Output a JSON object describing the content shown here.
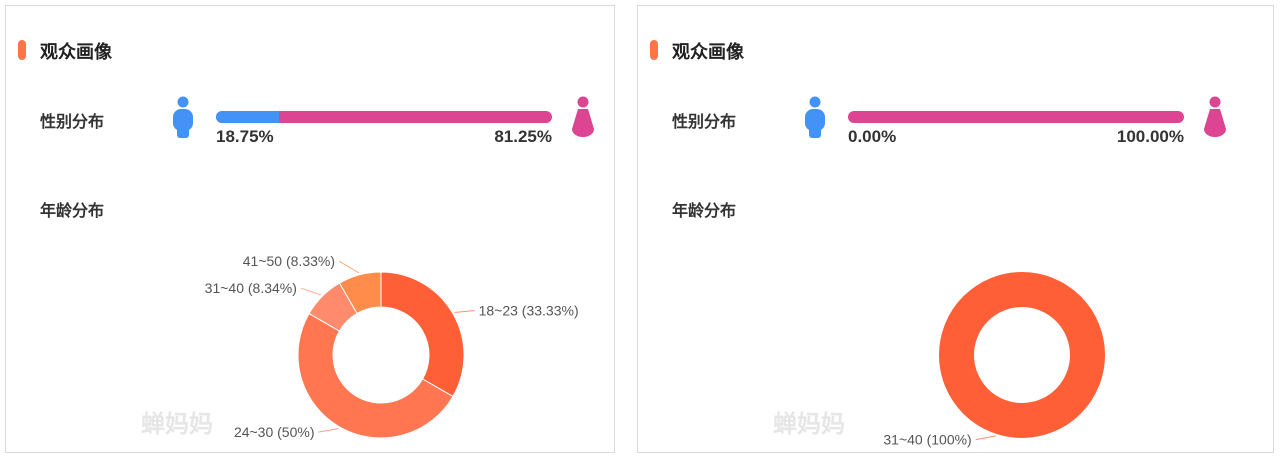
{
  "panels": [
    {
      "title": "观众画像",
      "gender_label": "性别分布",
      "age_label": "年龄分布",
      "male_pct": "18.75%",
      "female_pct": "81.25%",
      "male_fraction": 0.1875,
      "watermark": "蝉妈妈",
      "chart_data": {
        "type": "pie",
        "donut": true,
        "categories": [
          "18~23",
          "24~30",
          "31~40",
          "41~50"
        ],
        "values": [
          33.33,
          50,
          8.34,
          8.33
        ],
        "labels": [
          "18~23 (33.33%)",
          "24~30 (50%)",
          "31~40 (8.34%)",
          "41~50 (8.33%)"
        ],
        "colors": [
          "#ff5f36",
          "#ff7651",
          "#ff8a6c",
          "#ff8c4a"
        ]
      }
    },
    {
      "title": "观众画像",
      "gender_label": "性别分布",
      "age_label": "年龄分布",
      "male_pct": "0.00%",
      "female_pct": "100.00%",
      "male_fraction": 0,
      "watermark": "蝉妈妈",
      "chart_data": {
        "type": "pie",
        "donut": true,
        "categories": [
          "31~40"
        ],
        "values": [
          100
        ],
        "labels": [
          "31~40 (100%)"
        ],
        "colors": [
          "#ff5f36"
        ]
      }
    }
  ],
  "colors": {
    "accent": "#ff7448",
    "male": "#4393f7",
    "female": "#dd4491"
  }
}
